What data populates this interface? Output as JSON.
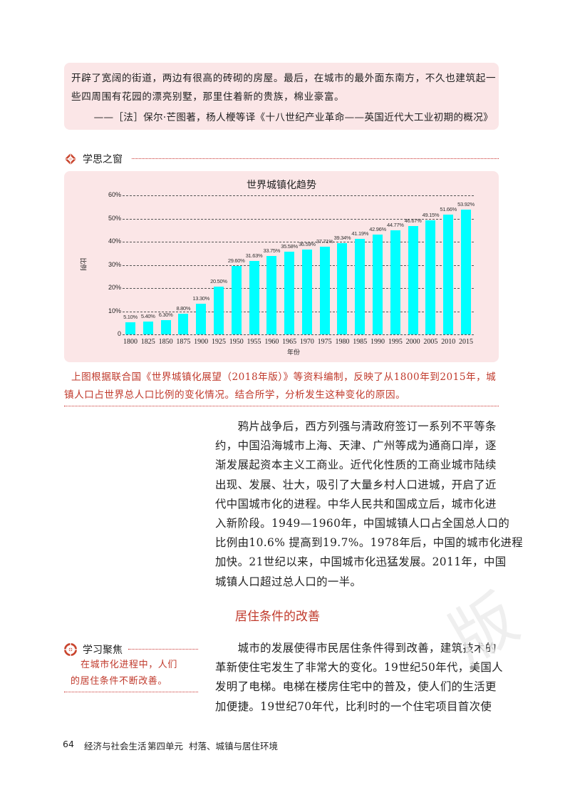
{
  "quote": {
    "lines": [
      "开辟了宽阔的街道，两边有很高的砖砌的房屋。最后，在城市的最外面东南方，不久也建筑起一",
      "些四周围有花园的漂亮别墅，那里住着新的贵族，棉业豪富。"
    ],
    "source": "——［法］保尔·芒图著，杨人楩等译《十八世纪产业革命——英国近代大工业初期的概况》"
  },
  "section_window": {
    "title": "学思之窗",
    "icon": "diamond-emblem-icon"
  },
  "chart_data": {
    "type": "bar",
    "title": "世界城镇化趋势",
    "xlabel": "年份",
    "ylabel": "比例",
    "categories": [
      "1800",
      "1825",
      "1850",
      "1875",
      "1900",
      "1925",
      "1950",
      "1955",
      "1960",
      "1965",
      "1970",
      "1975",
      "1980",
      "1985",
      "1990",
      "1995",
      "2000",
      "2005",
      "2010",
      "2015"
    ],
    "values": [
      5.1,
      5.4,
      6.3,
      8.8,
      13.3,
      20.5,
      29.6,
      31.63,
      33.75,
      35.58,
      36.59,
      37.71,
      39.34,
      41.19,
      42.96,
      44.77,
      46.67,
      49.15,
      51.66,
      53.92
    ],
    "labels": [
      "5.10%",
      "5.40%",
      "6.30%",
      "8.80%",
      "13.30%",
      "20.50%",
      "29.60%",
      "31.63%",
      "33.75%",
      "35.58%",
      "36.59%",
      "37.71%",
      "39.34%",
      "41.19%",
      "42.96%",
      "44.77%",
      "46.67%",
      "49.15%",
      "51.66%",
      "53.92%"
    ],
    "yticks": [
      "0",
      "10%",
      "20%",
      "30%",
      "40%",
      "50%",
      "60%"
    ],
    "ylim": [
      0,
      60
    ],
    "grid": true,
    "bar_color": "#00FFFF"
  },
  "caption": {
    "lines": [
      "上图根据联合国《世界城镇化展望（2018年版）》等资料编制，反映了从1800年到2015年，城",
      "镇人口占世界总人口比例的变化情况。结合所学，分析发生这种变化的原因。"
    ]
  },
  "body": {
    "paragraph1": [
      "　　鸦片战争后，西方列强与清政府签订一系列不平等条",
      "约，中国沿海城市上海、天津、广州等成为通商口岸，逐",
      "渐发展起资本主义工商业。近代化性质的工商业城市陆续",
      "出现、发展、壮大，吸引了大量乡村人口进城，开启了近",
      "代中国城市化的进程。中华人民共和国成立后，城市化进",
      "入新阶段。1949—1960年，中国城镇人口占全国总人口的",
      "比例由10.6% 提高到19.7%。1978年后，中国的城市化进程",
      "加快。21世纪以来，中国城市化迅猛发展。2011年，中国",
      "城镇人口超过总人口的一半。"
    ],
    "subheading": "居住条件的改善",
    "paragraph2": [
      "　　城市的发展使得市民居住条件得到改善，建筑技术的",
      "革新使住宅发生了非常大的变化。19世纪50年代，美国人",
      "发明了电梯。电梯在楼房住宅中的普及，使人们的生活更",
      "加便捷。19世纪70年代，比利时的一个住宅项目首次使"
    ]
  },
  "focus": {
    "title": "学习聚焦",
    "icon": "target-emblem-icon",
    "lines": [
      "在城市化进程中，人们",
      "的居住条件不断改善。"
    ]
  },
  "footer": {
    "page_number": "64",
    "book": "经济与社会生活",
    "unit": "第四单元",
    "unit_title": "村落、城镇与居住环境"
  },
  "colors": {
    "accent": "#C0392B",
    "panel": "#FBE6E7",
    "bar": "#00FFFF"
  }
}
